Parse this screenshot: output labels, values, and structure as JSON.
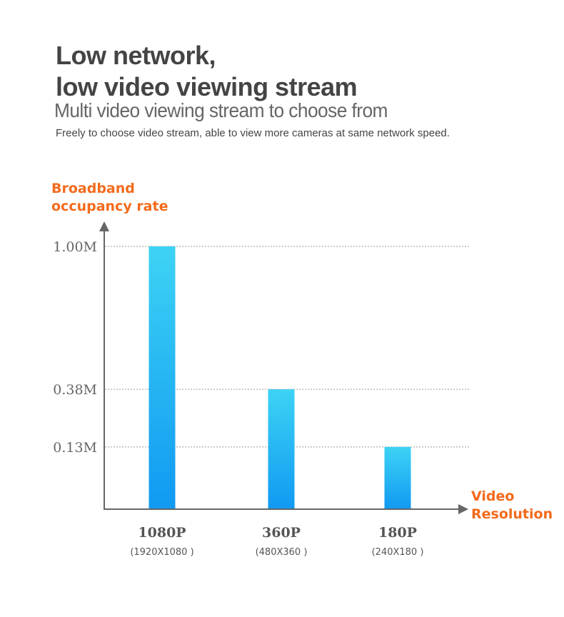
{
  "header": {
    "title_line1": "Low network,",
    "title_line2": "low video viewing stream",
    "subtitle": "Multi video viewing stream to choose from",
    "description": "Freely to choose video stream, able to view more cameras at same network speed."
  },
  "chart_data": {
    "type": "bar",
    "title": "Low network, low video viewing stream",
    "ylabel": "Broadband occupancy rate",
    "xlabel": "Video Resolution",
    "categories": [
      "1080P",
      "360P",
      "180P"
    ],
    "category_details": [
      "(1920X1080 )",
      "(480X360 )",
      "(240X180 )"
    ],
    "values": [
      1.0,
      0.38,
      0.13
    ],
    "unit": "M",
    "y_ticks": [
      {
        "value": 1.0,
        "label": "1.00M"
      },
      {
        "value": 0.38,
        "label": "0.38M"
      },
      {
        "value": 0.13,
        "label": "0.13M"
      }
    ],
    "ylim": [
      -0.14,
      1.0
    ],
    "grid": "dotted lines at tick values",
    "colors": {
      "bar_top": "#3dd3f4",
      "bar_bottom": "#1199f2",
      "axis": "#666666",
      "gridline": "#999999",
      "accent": "#f26a1b"
    }
  }
}
